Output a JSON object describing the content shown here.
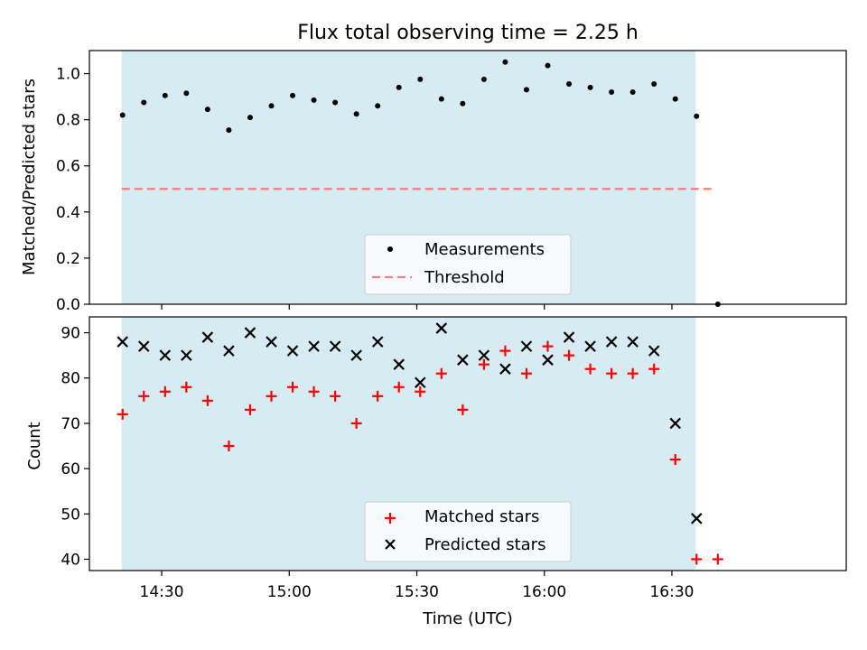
{
  "chart_data": [
    {
      "type": "scatter",
      "title": "Flux total observing time = 2.25 h",
      "xlabel": "",
      "ylabel": "Matched/Predicted stars",
      "xlim_minutes": [
        853,
        1031
      ],
      "ylim": [
        0.0,
        1.1
      ],
      "yticks": [
        0.0,
        0.2,
        0.4,
        0.6,
        0.8,
        1.0
      ],
      "ytick_labels": [
        "0.0",
        "0.2",
        "0.4",
        "0.6",
        "0.8",
        "1.0"
      ],
      "xticks_minutes": [
        870,
        900,
        930,
        960,
        990
      ],
      "observing_window_minutes": [
        860.6,
        995.6
      ],
      "threshold": {
        "name": "Threshold",
        "value": 0.5,
        "x_range_minutes": [
          860.6,
          1000.3
        ],
        "color": "#f08080"
      },
      "series": [
        {
          "name": "Measurements",
          "color": "#000000",
          "x_minutes": [
            860.8,
            865.8,
            870.8,
            875.8,
            880.8,
            885.8,
            890.8,
            895.8,
            900.8,
            905.8,
            910.8,
            915.8,
            920.8,
            925.8,
            930.8,
            935.8,
            940.8,
            945.8,
            950.8,
            955.8,
            960.8,
            965.8,
            970.8,
            975.8,
            980.8,
            985.8,
            990.8,
            995.8,
            1000.8
          ],
          "values": [
            0.82,
            0.875,
            0.905,
            0.915,
            0.845,
            0.755,
            0.81,
            0.86,
            0.905,
            0.885,
            0.875,
            0.825,
            0.86,
            0.94,
            0.975,
            0.89,
            0.87,
            0.975,
            1.05,
            0.93,
            1.035,
            0.955,
            0.94,
            0.92,
            0.92,
            0.955,
            0.89,
            0.815,
            0.0
          ]
        }
      ],
      "legend": {
        "position": "lower-center",
        "entries": [
          "Measurements",
          "Threshold"
        ]
      }
    },
    {
      "type": "scatter",
      "title": "",
      "xlabel": "Time (UTC)",
      "ylabel": "Count",
      "xlim_minutes": [
        853,
        1031
      ],
      "ylim": [
        37.5,
        93.5
      ],
      "yticks": [
        40,
        50,
        60,
        70,
        80,
        90
      ],
      "ytick_labels": [
        "40",
        "50",
        "60",
        "70",
        "80",
        "90"
      ],
      "xticks_minutes": [
        870,
        900,
        930,
        960,
        990
      ],
      "xtick_labels": [
        "14:30",
        "15:00",
        "15:30",
        "16:00",
        "16:30"
      ],
      "observing_window_minutes": [
        860.6,
        995.6
      ],
      "series": [
        {
          "name": "Matched stars",
          "marker": "+",
          "color": "#ff0000",
          "x_minutes": [
            860.8,
            865.8,
            870.8,
            875.8,
            880.8,
            885.8,
            890.8,
            895.8,
            900.8,
            905.8,
            910.8,
            915.8,
            920.8,
            925.8,
            930.8,
            935.8,
            940.8,
            945.8,
            950.8,
            955.8,
            960.8,
            965.8,
            970.8,
            975.8,
            980.8,
            985.8,
            990.8,
            995.8,
            1000.8
          ],
          "values": [
            72,
            76,
            77,
            78,
            75,
            65,
            73,
            76,
            78,
            77,
            76,
            70,
            76,
            78,
            77,
            81,
            73,
            83,
            86,
            81,
            87,
            85,
            82,
            81,
            81,
            82,
            62,
            40,
            40
          ]
        },
        {
          "name": "Predicted stars",
          "marker": "x",
          "color": "#000000",
          "x_minutes": [
            860.8,
            865.8,
            870.8,
            875.8,
            880.8,
            885.8,
            890.8,
            895.8,
            900.8,
            905.8,
            910.8,
            915.8,
            920.8,
            925.8,
            930.8,
            935.8,
            940.8,
            945.8,
            950.8,
            955.8,
            960.8,
            965.8,
            970.8,
            975.8,
            980.8,
            985.8,
            990.8,
            995.8
          ],
          "values": [
            88,
            87,
            85,
            85,
            89,
            86,
            90,
            88,
            86,
            87,
            87,
            85,
            88,
            83,
            79,
            91,
            84,
            85,
            82,
            87,
            84,
            89,
            87,
            88,
            88,
            86,
            70,
            49
          ]
        }
      ],
      "legend": {
        "position": "lower-center",
        "entries": [
          "Matched stars",
          "Predicted stars"
        ]
      }
    }
  ]
}
